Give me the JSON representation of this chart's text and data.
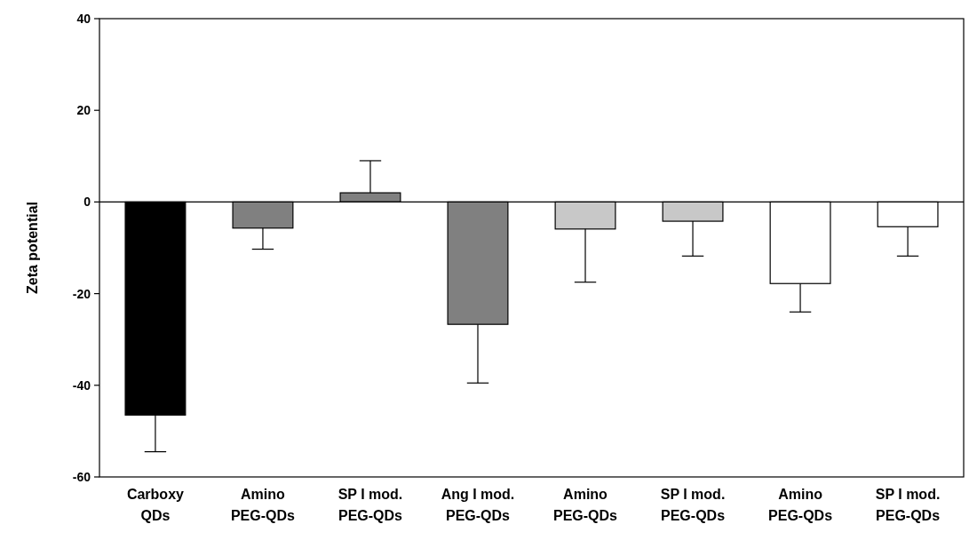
{
  "chart_data": {
    "type": "bar",
    "ylabel": "Zeta potential",
    "categories": [
      "Carboxy QDs",
      "Amino PEG-QDs",
      "SP I mod. PEG-QDs",
      "Ang I mod. PEG-QDs",
      "Amino PEG-QDs",
      "SP I mod. PEG-QDs",
      "Amino PEG-QDs",
      "SP I mod. PEG-QDs"
    ],
    "values": [
      -46.5,
      -5.7,
      2,
      -26.7,
      -5.9,
      -4.2,
      -17.8,
      -5.4
    ],
    "colors": [
      "#000000",
      "#808080",
      "#808080",
      "#808080",
      "#c8c8c8",
      "#c8c8c8",
      "#ffffff",
      "#ffffff"
    ],
    "errors": [
      [
        -54.5,
        -46.5
      ],
      [
        -10.3,
        -5.7
      ],
      [
        2,
        9
      ],
      [
        -39.5,
        -26.7
      ],
      [
        -17.5,
        -5.9
      ],
      [
        -11.8,
        -4.2
      ],
      [
        -24,
        -17.8
      ],
      [
        -11.8,
        -5.4
      ]
    ],
    "ylim": [
      -60,
      40
    ],
    "yticks": [
      -60,
      -40,
      -20,
      0,
      20,
      40
    ]
  }
}
